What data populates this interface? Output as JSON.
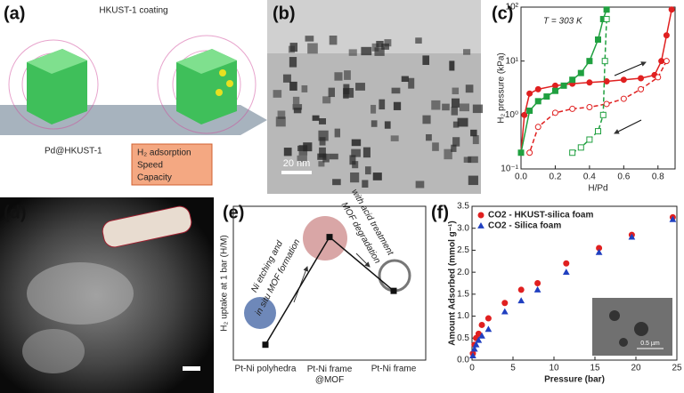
{
  "figure": {
    "panels": [
      "(a)",
      "(b)",
      "(c)",
      "(d)",
      "(e)",
      "(f)"
    ],
    "a": {
      "coating": "HKUST-1 coating",
      "product": "Pd@HKUST-1",
      "box": [
        "H₂ adsorption",
        "Speed",
        "Capacity"
      ]
    },
    "b": {
      "scale": "20 nm"
    },
    "f_inset": {
      "scale": "0.5 µm"
    }
  },
  "chart_data": [
    {
      "type": "line",
      "log_y": true,
      "xlabel": "H/Pd",
      "ylabel": "H₂ pressure (kPa)",
      "annotation": "T = 303 K",
      "xlim": [
        0,
        0.9
      ],
      "xticks": [
        {
          "value": 0,
          "label": "0.0"
        },
        0.2,
        0.4,
        0.6,
        0.8
      ],
      "ylim": [
        0.1,
        100
      ],
      "yticks": [
        {
          "value": 0.1,
          "label": "10⁻¹"
        },
        {
          "value": 1,
          "label": "10⁰"
        },
        {
          "value": 10,
          "label": "10¹"
        },
        {
          "value": 100,
          "label": "10²"
        }
      ],
      "series": [
        {
          "color": "#e02020",
          "marker": "circle",
          "filled": true,
          "x": [
            0.0,
            0.02,
            0.05,
            0.1,
            0.2,
            0.3,
            0.4,
            0.5,
            0.6,
            0.7,
            0.78,
            0.82,
            0.85,
            0.88
          ],
          "values": [
            0.2,
            1,
            2.5,
            3,
            3.5,
            3.8,
            4,
            4.2,
            4.5,
            4.8,
            5.5,
            10,
            30,
            90
          ]
        },
        {
          "color": "#e02020",
          "marker": "circle",
          "filled": false,
          "dashed": true,
          "x": [
            0.85,
            0.8,
            0.7,
            0.6,
            0.5,
            0.4,
            0.3,
            0.2,
            0.1,
            0.05
          ],
          "values": [
            10,
            5,
            3,
            2,
            1.6,
            1.4,
            1.3,
            1.1,
            0.6,
            0.2
          ]
        },
        {
          "color": "#20a040",
          "marker": "square",
          "filled": true,
          "x": [
            0,
            0.05,
            0.1,
            0.15,
            0.2,
            0.25,
            0.3,
            0.35,
            0.4,
            0.45,
            0.48,
            0.5
          ],
          "values": [
            0.2,
            1.2,
            1.8,
            2.2,
            2.8,
            3.5,
            4.5,
            6,
            10,
            25,
            60,
            90
          ]
        },
        {
          "color": "#20a040",
          "marker": "square",
          "filled": false,
          "dashed": true,
          "x": [
            0.5,
            0.49,
            0.48,
            0.45,
            0.4,
            0.35,
            0.3
          ],
          "values": [
            60,
            10,
            1,
            0.5,
            0.35,
            0.25,
            0.2
          ]
        }
      ]
    },
    {
      "type": "line",
      "ylabel": "H₂ uptake at 1 bar (H/M)",
      "annotations": [
        "Ni etching and",
        "in situ MOF formation",
        "MOF degradation",
        "with acid treatment"
      ],
      "categories": [
        "Pt-Ni polyhedra",
        "Pt-Ni frame @MOF",
        "Pt-Ni frame"
      ],
      "ylim": [
        0,
        1
      ],
      "series": [
        {
          "color": "#111111",
          "marker": "square",
          "filled": true,
          "values": [
            0.1,
            0.8,
            0.45
          ]
        }
      ]
    },
    {
      "type": "scatter",
      "xlabel": "Pressure (bar)",
      "ylabel": "Amount Adsorbed (mmol g⁻¹)",
      "legend": "upper left",
      "xlim": [
        0,
        25
      ],
      "xticks": [
        0,
        5,
        10,
        15,
        20,
        25
      ],
      "ylim": [
        0,
        3.5
      ],
      "yticks": [
        {
          "value": 0,
          "label": "0.0"
        },
        0.5,
        {
          "value": 1,
          "label": "1.0"
        },
        1.5,
        {
          "value": 2,
          "label": "2.0"
        },
        2.5,
        {
          "value": 3,
          "label": "3.0"
        },
        3.5
      ],
      "x": [
        0.1,
        0.3,
        0.5,
        0.8,
        1.2,
        2,
        4,
        6,
        8,
        11.5,
        15.5,
        19.5,
        24.5
      ],
      "series": [
        {
          "name": "CO2 - HKUST-silica foam",
          "color": "#e02020",
          "marker": "circle",
          "filled": true,
          "values": [
            0.15,
            0.35,
            0.5,
            0.6,
            0.8,
            0.95,
            1.3,
            1.6,
            1.75,
            2.2,
            2.55,
            2.85,
            3.25
          ]
        },
        {
          "name": "CO2 - Silica foam",
          "color": "#2040c0",
          "marker": "triangle",
          "filled": true,
          "values": [
            0.1,
            0.25,
            0.35,
            0.45,
            0.55,
            0.7,
            1.1,
            1.35,
            1.6,
            2.0,
            2.45,
            2.8,
            3.2
          ]
        }
      ]
    }
  ]
}
